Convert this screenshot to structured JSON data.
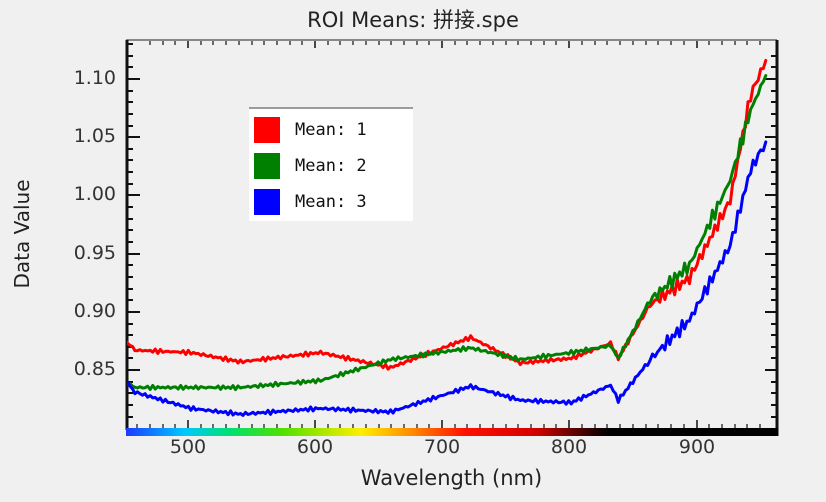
{
  "window": {
    "title": "ROI Means: 拼接.spe"
  },
  "chart_data": {
    "type": "line",
    "title": "ROI Means: 拼接.spe",
    "xlabel": "Wavelength (nm)",
    "ylabel": "Data Value",
    "xlim": [
      451,
      963
    ],
    "ylim": [
      0.8,
      1.134
    ],
    "x_ticks": [
      "500",
      "600",
      "700",
      "800",
      "900"
    ],
    "y_ticks": [
      "1.10",
      "1.05",
      "1.00",
      "0.95",
      "0.90",
      "0.85"
    ],
    "grid": false,
    "legend_position": "upper-left-inside",
    "x": [
      451,
      458,
      502,
      541,
      604,
      659,
      722,
      761,
      801,
      832,
      838,
      863,
      894,
      926,
      942,
      954
    ],
    "series": [
      {
        "name": "Mean: 1",
        "color": "#ff0000",
        "values": [
          0.875,
          0.867,
          0.865,
          0.857,
          0.865,
          0.852,
          0.878,
          0.856,
          0.86,
          0.873,
          0.86,
          0.906,
          0.929,
          0.996,
          1.086,
          1.116
        ]
      },
      {
        "name": "Mean: 2",
        "color": "#008000",
        "values": [
          0.839,
          0.835,
          0.835,
          0.835,
          0.841,
          0.859,
          0.869,
          0.859,
          0.865,
          0.871,
          0.86,
          0.91,
          0.94,
          1.013,
          1.073,
          1.103
        ]
      },
      {
        "name": "Mean: 3",
        "color": "#0000ff",
        "values": [
          0.84,
          0.831,
          0.817,
          0.812,
          0.817,
          0.814,
          0.836,
          0.824,
          0.822,
          0.837,
          0.824,
          0.859,
          0.893,
          0.957,
          1.022,
          1.046
        ]
      }
    ],
    "annotations": [
      "spectral color bar along x-axis (blue→violet→red→black)"
    ]
  },
  "legend": {
    "items": [
      {
        "label": "Mean: 1",
        "color": "#ff0000"
      },
      {
        "label": "Mean: 2",
        "color": "#008000"
      },
      {
        "label": "Mean: 3",
        "color": "#0000ff"
      }
    ]
  }
}
